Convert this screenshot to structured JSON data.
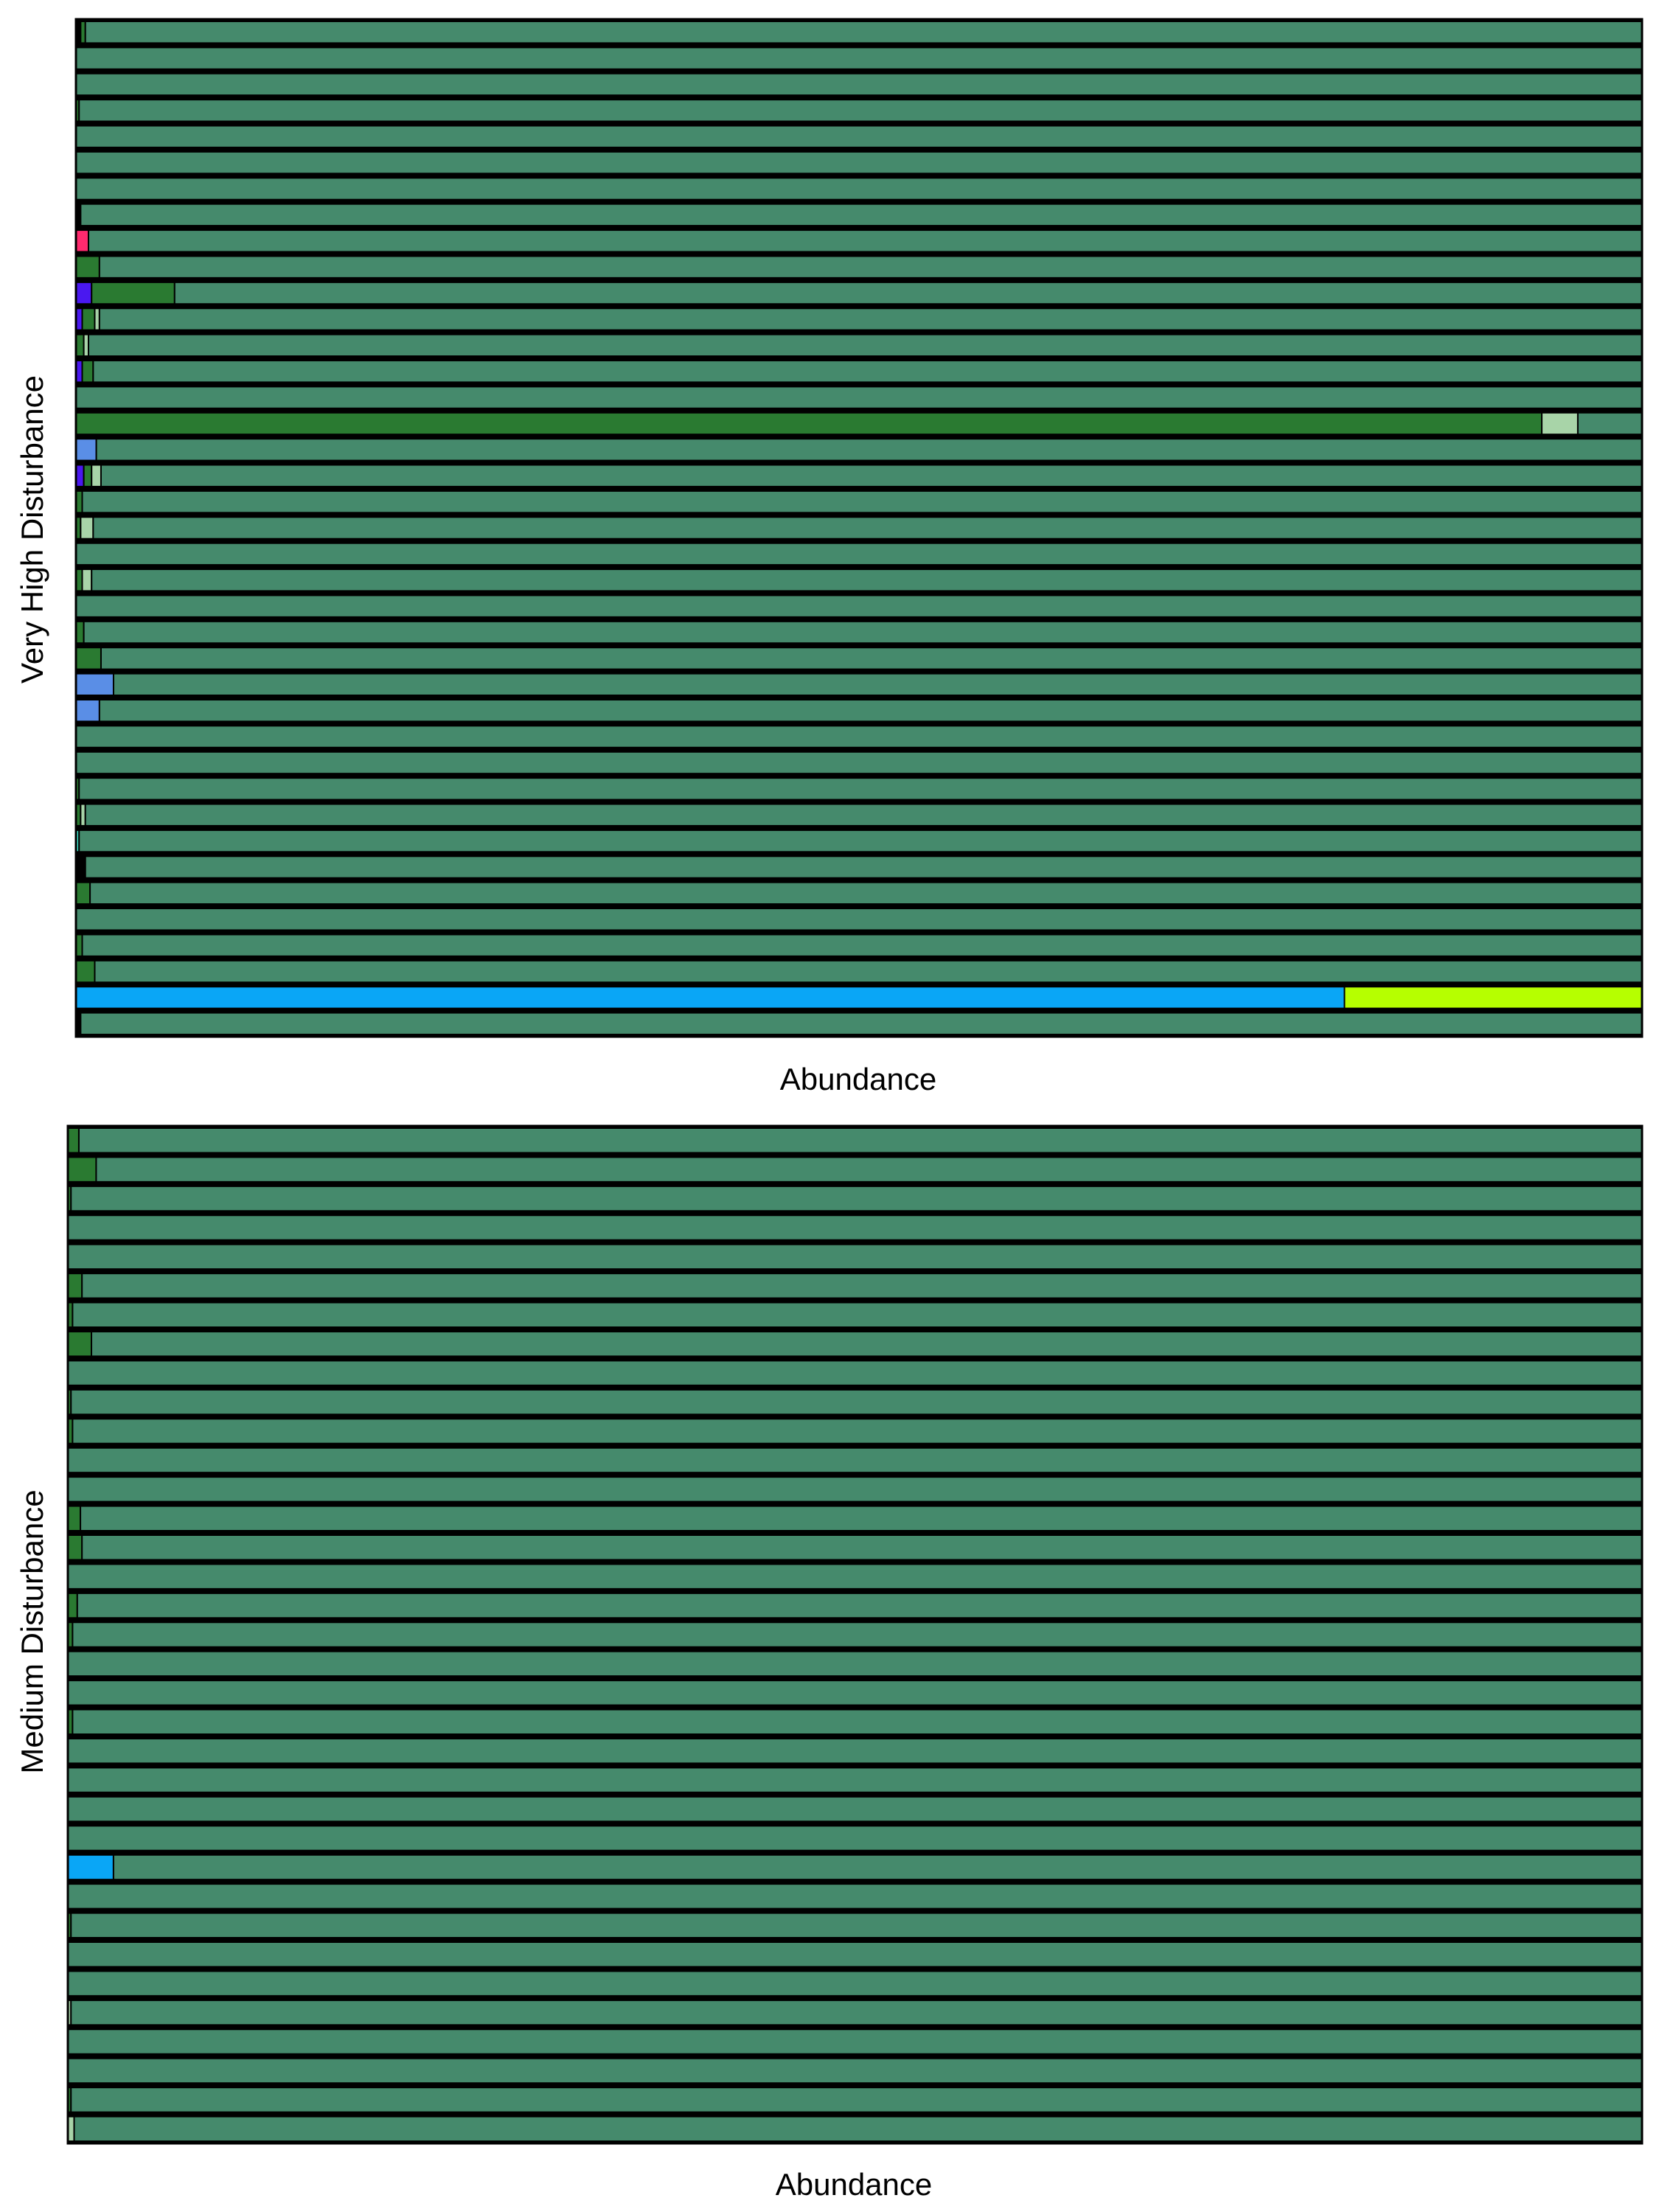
{
  "colors": {
    "base": "#458a6c",
    "dark_green": "#2a7a31",
    "pale_green": "#a8d4a8",
    "pink": "#ff2a6e",
    "purple": "#4a18f0",
    "cornflower": "#5a8ee6",
    "sky_blue": "#0aa6f6",
    "lime": "#b6ff00",
    "black": "#000000",
    "aqua": "#40e0c8"
  },
  "chart_data": [
    {
      "type": "bar",
      "orientation": "horizontal",
      "stacked": true,
      "normalized": true,
      "title": "",
      "xlabel": "Abundance",
      "ylabel": "Very High Disturbance",
      "xlim": [
        0,
        1
      ],
      "grid": false,
      "legend": "none",
      "bars": [
        [
          [
            "black",
            0.003
          ],
          [
            "dark_green",
            0.003
          ]
        ],
        [],
        [],
        [
          [
            "dark_green",
            0.002
          ]
        ],
        [],
        [],
        [],
        [
          [
            "black",
            0.003
          ]
        ],
        [
          [
            "pink",
            0.008
          ]
        ],
        [
          [
            "dark_green",
            0.015
          ]
        ],
        [
          [
            "purple",
            0.01
          ],
          [
            "dark_green",
            0.053
          ]
        ],
        [
          [
            "purple",
            0.004
          ],
          [
            "dark_green",
            0.008
          ],
          [
            "pale_green",
            0.003
          ]
        ],
        [
          [
            "dark_green",
            0.005
          ],
          [
            "pale_green",
            0.003
          ]
        ],
        [
          [
            "purple",
            0.004
          ],
          [
            "dark_green",
            0.007
          ]
        ],
        [],
        [
          [
            "dark_green",
            0.936
          ],
          [
            "pale_green",
            0.023
          ]
        ],
        [
          [
            "cornflower",
            0.013
          ]
        ],
        [
          [
            "purple",
            0.005
          ],
          [
            "dark_green",
            0.005
          ],
          [
            "pale_green",
            0.006
          ]
        ],
        [
          [
            "dark_green",
            0.004
          ]
        ],
        [
          [
            "dark_green",
            0.003
          ],
          [
            "pale_green",
            0.008
          ]
        ],
        [],
        [
          [
            "dark_green",
            0.004
          ],
          [
            "pale_green",
            0.006
          ]
        ],
        [],
        [
          [
            "dark_green",
            0.005
          ]
        ],
        [
          [
            "dark_green",
            0.016
          ]
        ],
        [
          [
            "cornflower",
            0.024
          ]
        ],
        [
          [
            "cornflower",
            0.015
          ]
        ],
        [],
        [],
        [
          [
            "dark_green",
            0.002
          ]
        ],
        [
          [
            "dark_green",
            0.003
          ],
          [
            "pale_green",
            0.003
          ]
        ],
        [
          [
            "aqua",
            0.002
          ]
        ],
        [
          [
            "black",
            0.006
          ]
        ],
        [
          [
            "dark_green",
            0.009
          ]
        ],
        [],
        [
          [
            "dark_green",
            0.004
          ]
        ],
        [
          [
            "dark_green",
            0.012
          ]
        ],
        [
          [
            "sky_blue",
            0.81
          ],
          [
            "lime",
            0.19
          ]
        ],
        [
          [
            "black",
            0.003
          ]
        ]
      ]
    },
    {
      "type": "bar",
      "orientation": "horizontal",
      "stacked": true,
      "normalized": true,
      "title": "",
      "xlabel": "Abundance",
      "ylabel": "Medium Disturbance",
      "xlim": [
        0,
        1
      ],
      "grid": false,
      "legend": "none",
      "bars": [
        [
          [
            "dark_green",
            0.007
          ]
        ],
        [
          [
            "dark_green",
            0.018
          ]
        ],
        [
          [
            "dark_green",
            0.002
          ]
        ],
        [],
        [],
        [
          [
            "dark_green",
            0.009
          ]
        ],
        [
          [
            "dark_green",
            0.003
          ]
        ],
        [
          [
            "dark_green",
            0.015
          ]
        ],
        [],
        [
          [
            "dark_green",
            0.002
          ]
        ],
        [
          [
            "dark_green",
            0.003
          ]
        ],
        [],
        [],
        [
          [
            "dark_green",
            0.008
          ]
        ],
        [
          [
            "dark_green",
            0.009
          ]
        ],
        [],
        [
          [
            "dark_green",
            0.006
          ]
        ],
        [
          [
            "dark_green",
            0.003
          ]
        ],
        [],
        [],
        [
          [
            "dark_green",
            0.003
          ]
        ],
        [],
        [],
        [],
        [],
        [
          [
            "sky_blue",
            0.029
          ]
        ],
        [],
        [
          [
            "dark_green",
            0.002
          ]
        ],
        [],
        [],
        [
          [
            "pale_green",
            0.002
          ]
        ],
        [],
        [],
        [
          [
            "dark_green",
            0.002
          ]
        ],
        [
          [
            "pale_green",
            0.004
          ]
        ]
      ]
    }
  ]
}
